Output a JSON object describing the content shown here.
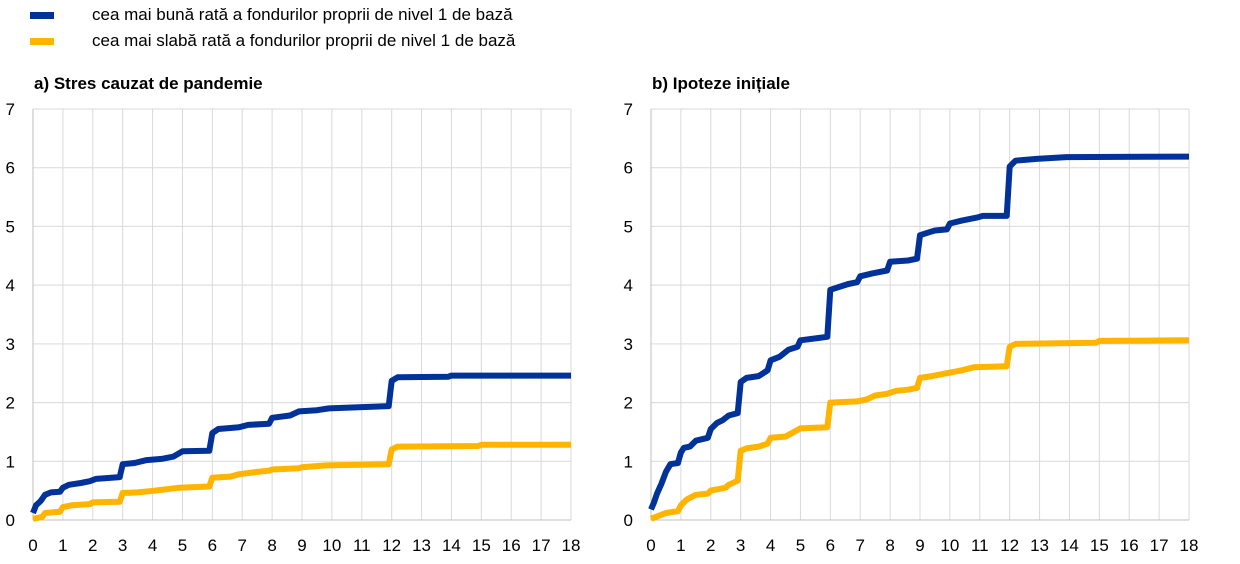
{
  "legend": [
    {
      "label": "cea mai bună rată a fondurilor proprii de nivel 1 de bază",
      "color": "#003299"
    },
    {
      "label": "cea mai slabă rată a fondurilor proprii de nivel 1 de bază",
      "color": "#FFB400"
    }
  ],
  "chart_data": [
    {
      "type": "line",
      "title": "a) Stres cauzat de pandemie",
      "xlim": [
        0,
        18
      ],
      "ylim": [
        0,
        7
      ],
      "x_ticks": [
        0,
        1,
        2,
        3,
        4,
        5,
        6,
        7,
        8,
        9,
        10,
        11,
        12,
        13,
        14,
        15,
        16,
        17,
        18
      ],
      "y_ticks": [
        0,
        1,
        2,
        3,
        4,
        5,
        6,
        7
      ],
      "grid": true,
      "series": [
        {
          "name": "cea mai bună rată a fondurilor proprii de nivel 1 de bază",
          "color": "#003299",
          "points": [
            [
              0,
              0.12
            ],
            [
              0.1,
              0.25
            ],
            [
              0.25,
              0.32
            ],
            [
              0.4,
              0.43
            ],
            [
              0.6,
              0.47
            ],
            [
              0.9,
              0.48
            ],
            [
              1,
              0.55
            ],
            [
              1.2,
              0.6
            ],
            [
              1.6,
              0.63
            ],
            [
              1.9,
              0.66
            ],
            [
              2.1,
              0.7
            ],
            [
              2.4,
              0.71
            ],
            [
              2.9,
              0.73
            ],
            [
              3,
              0.95
            ],
            [
              3.4,
              0.97
            ],
            [
              3.8,
              1.02
            ],
            [
              4.3,
              1.04
            ],
            [
              4.7,
              1.08
            ],
            [
              5,
              1.17
            ],
            [
              5.9,
              1.18
            ],
            [
              6,
              1.48
            ],
            [
              6.2,
              1.55
            ],
            [
              6.9,
              1.58
            ],
            [
              7.2,
              1.62
            ],
            [
              7.9,
              1.64
            ],
            [
              8,
              1.74
            ],
            [
              8.6,
              1.78
            ],
            [
              8.9,
              1.85
            ],
            [
              9.5,
              1.87
            ],
            [
              9.9,
              1.9
            ],
            [
              10.9,
              1.92
            ],
            [
              11.9,
              1.94
            ],
            [
              12,
              2.37
            ],
            [
              12.2,
              2.43
            ],
            [
              13.9,
              2.44
            ],
            [
              14,
              2.46
            ],
            [
              18,
              2.46
            ]
          ]
        },
        {
          "name": "cea mai slabă rată a fondurilor proprii de nivel 1 de bază",
          "color": "#FFB400",
          "points": [
            [
              0,
              0.02
            ],
            [
              0.3,
              0.05
            ],
            [
              0.4,
              0.12
            ],
            [
              0.9,
              0.14
            ],
            [
              1,
              0.22
            ],
            [
              1.3,
              0.25
            ],
            [
              1.9,
              0.27
            ],
            [
              2,
              0.3
            ],
            [
              2.9,
              0.31
            ],
            [
              3,
              0.46
            ],
            [
              3.5,
              0.47
            ],
            [
              3.9,
              0.49
            ],
            [
              4.4,
              0.52
            ],
            [
              4.9,
              0.55
            ],
            [
              5.9,
              0.57
            ],
            [
              6,
              0.72
            ],
            [
              6.6,
              0.74
            ],
            [
              6.9,
              0.78
            ],
            [
              7.5,
              0.82
            ],
            [
              7.9,
              0.84
            ],
            [
              8,
              0.86
            ],
            [
              8.9,
              0.88
            ],
            [
              9,
              0.9
            ],
            [
              9.8,
              0.93
            ],
            [
              11.9,
              0.95
            ],
            [
              12,
              1.2
            ],
            [
              12.2,
              1.25
            ],
            [
              14.9,
              1.26
            ],
            [
              15,
              1.28
            ],
            [
              18,
              1.28
            ]
          ]
        }
      ]
    },
    {
      "type": "line",
      "title": "b) Ipoteze inițiale",
      "xlim": [
        0,
        18
      ],
      "ylim": [
        0,
        7
      ],
      "x_ticks": [
        0,
        1,
        2,
        3,
        4,
        5,
        6,
        7,
        8,
        9,
        10,
        11,
        12,
        13,
        14,
        15,
        16,
        17,
        18
      ],
      "y_ticks": [
        0,
        1,
        2,
        3,
        4,
        5,
        6,
        7
      ],
      "grid": true,
      "series": [
        {
          "name": "cea mai bună rată a fondurilor proprii de nivel 1 de bază",
          "color": "#003299",
          "points": [
            [
              0,
              0.18
            ],
            [
              0.1,
              0.3
            ],
            [
              0.2,
              0.45
            ],
            [
              0.35,
              0.62
            ],
            [
              0.5,
              0.82
            ],
            [
              0.65,
              0.95
            ],
            [
              0.9,
              0.97
            ],
            [
              1,
              1.15
            ],
            [
              1.1,
              1.23
            ],
            [
              1.3,
              1.25
            ],
            [
              1.5,
              1.35
            ],
            [
              1.9,
              1.4
            ],
            [
              2,
              1.55
            ],
            [
              2.2,
              1.65
            ],
            [
              2.4,
              1.7
            ],
            [
              2.6,
              1.78
            ],
            [
              2.9,
              1.82
            ],
            [
              3,
              2.35
            ],
            [
              3.2,
              2.42
            ],
            [
              3.6,
              2.45
            ],
            [
              3.9,
              2.55
            ],
            [
              4,
              2.72
            ],
            [
              4.3,
              2.78
            ],
            [
              4.6,
              2.9
            ],
            [
              4.9,
              2.95
            ],
            [
              5,
              3.06
            ],
            [
              5.6,
              3.1
            ],
            [
              5.9,
              3.12
            ],
            [
              6,
              3.92
            ],
            [
              6.3,
              3.97
            ],
            [
              6.6,
              4.02
            ],
            [
              6.9,
              4.05
            ],
            [
              7,
              4.15
            ],
            [
              7.4,
              4.2
            ],
            [
              7.9,
              4.25
            ],
            [
              8,
              4.4
            ],
            [
              8.6,
              4.42
            ],
            [
              8.9,
              4.45
            ],
            [
              9,
              4.85
            ],
            [
              9.3,
              4.9
            ],
            [
              9.5,
              4.93
            ],
            [
              9.9,
              4.95
            ],
            [
              10,
              5.05
            ],
            [
              10.4,
              5.1
            ],
            [
              10.9,
              5.15
            ],
            [
              11.1,
              5.18
            ],
            [
              11.9,
              5.18
            ],
            [
              12,
              6.02
            ],
            [
              12.2,
              6.12
            ],
            [
              12.9,
              6.15
            ],
            [
              13.9,
              6.18
            ],
            [
              18,
              6.19
            ]
          ]
        },
        {
          "name": "cea mai slabă rată a fondurilor proprii de nivel 1 de bază",
          "color": "#FFB400",
          "points": [
            [
              0,
              0.02
            ],
            [
              0.3,
              0.08
            ],
            [
              0.5,
              0.12
            ],
            [
              0.9,
              0.15
            ],
            [
              1,
              0.25
            ],
            [
              1.2,
              0.35
            ],
            [
              1.5,
              0.43
            ],
            [
              1.9,
              0.45
            ],
            [
              2,
              0.5
            ],
            [
              2.5,
              0.55
            ],
            [
              2.6,
              0.6
            ],
            [
              2.9,
              0.67
            ],
            [
              3,
              1.18
            ],
            [
              3.2,
              1.22
            ],
            [
              3.6,
              1.25
            ],
            [
              3.9,
              1.3
            ],
            [
              4,
              1.4
            ],
            [
              4.5,
              1.42
            ],
            [
              5,
              1.56
            ],
            [
              5.9,
              1.58
            ],
            [
              6,
              2.0
            ],
            [
              6.9,
              2.02
            ],
            [
              7.2,
              2.05
            ],
            [
              7.5,
              2.12
            ],
            [
              7.9,
              2.15
            ],
            [
              8.2,
              2.2
            ],
            [
              8.6,
              2.22
            ],
            [
              8.9,
              2.25
            ],
            [
              9,
              2.42
            ],
            [
              9.4,
              2.45
            ],
            [
              9.9,
              2.5
            ],
            [
              10.4,
              2.55
            ],
            [
              10.8,
              2.6
            ],
            [
              11.9,
              2.62
            ],
            [
              12,
              2.95
            ],
            [
              12.2,
              3.0
            ],
            [
              14.9,
              3.02
            ],
            [
              15,
              3.05
            ],
            [
              18,
              3.06
            ]
          ]
        }
      ]
    }
  ]
}
